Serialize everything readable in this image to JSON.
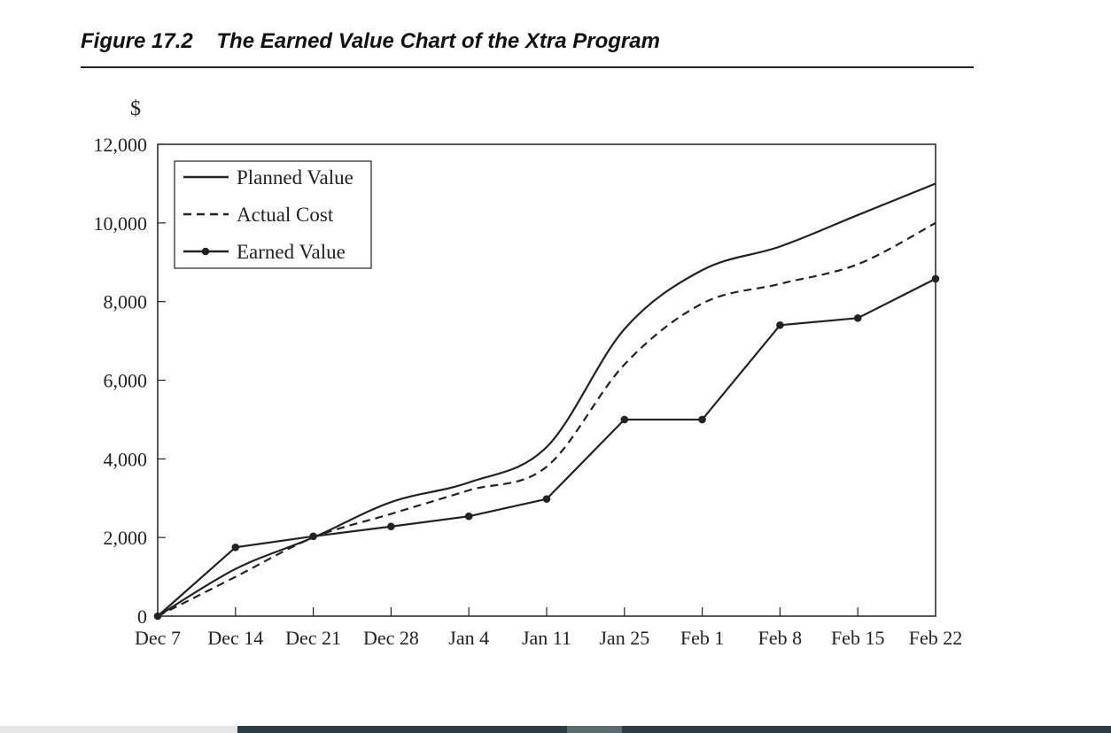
{
  "figure": {
    "number": "Figure 17.2",
    "title": "The Earned Value Chart of the Xtra Program"
  },
  "chart_data": {
    "type": "line",
    "title": "The Earned Value Chart of the Xtra Program",
    "xlabel": "",
    "ylabel": "$",
    "categories": [
      "Dec 7",
      "Dec 14",
      "Dec 21",
      "Dec 28",
      "Jan 4",
      "Jan 11",
      "Jan 25",
      "Feb 1",
      "Feb 8",
      "Feb 15",
      "Feb 22"
    ],
    "y_ticks": [
      0,
      2000,
      4000,
      6000,
      8000,
      10000,
      12000
    ],
    "y_tick_labels": [
      "0",
      "2,000",
      "4,000",
      "6,000",
      "8,000",
      "10,000",
      "12,000"
    ],
    "ylim": [
      0,
      12000
    ],
    "legend_position": "top-left",
    "series": [
      {
        "name": "Planned Value",
        "style": "solid",
        "markers": false,
        "values": [
          0,
          1200,
          2000,
          2900,
          3400,
          4300,
          7300,
          8800,
          9400,
          10200,
          11000
        ]
      },
      {
        "name": "Actual Cost",
        "style": "dashed",
        "markers": false,
        "values": [
          0,
          1000,
          2000,
          2600,
          3200,
          3800,
          6400,
          7950,
          8450,
          8950,
          10000
        ]
      },
      {
        "name": "Earned Value",
        "style": "solid",
        "markers": true,
        "values": [
          0,
          1750,
          2030,
          2280,
          2540,
          2980,
          5000,
          5000,
          7400,
          7580,
          8580
        ]
      }
    ]
  },
  "colors": {
    "ink": "#222222"
  }
}
